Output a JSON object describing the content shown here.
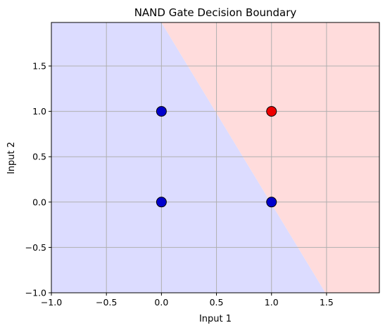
{
  "chart_data": {
    "type": "scatter",
    "title": "NAND Gate Decision Boundary",
    "xlabel": "Input 1",
    "ylabel": "Input 2",
    "xlim": [
      -1.0,
      1.98
    ],
    "ylim": [
      -1.0,
      1.98
    ],
    "xticks": [
      -1.0,
      -0.5,
      0.0,
      0.5,
      1.0,
      1.5
    ],
    "yticks": [
      -1.0,
      -0.5,
      0.0,
      0.5,
      1.0,
      1.5
    ],
    "xtick_labels": [
      "−1.0",
      "−0.5",
      "0.0",
      "0.5",
      "1.0",
      "1.5"
    ],
    "ytick_labels": [
      "−1.0",
      "−0.5",
      "0.0",
      "0.5",
      "1.0",
      "1.5"
    ],
    "grid": true,
    "decision_boundary": {
      "points": [
        [
          0.0,
          1.98
        ],
        [
          1.49,
          -1.0
        ]
      ],
      "region_below_color": "#dcdcff",
      "region_above_color": "#ffdcdc"
    },
    "points": [
      {
        "x": 0,
        "y": 0,
        "class": 1,
        "color": "#0000cc"
      },
      {
        "x": 0,
        "y": 1,
        "class": 1,
        "color": "#0000cc"
      },
      {
        "x": 1,
        "y": 0,
        "class": 1,
        "color": "#0000cc"
      },
      {
        "x": 1,
        "y": 1,
        "class": 0,
        "color": "#ee0000"
      }
    ]
  }
}
